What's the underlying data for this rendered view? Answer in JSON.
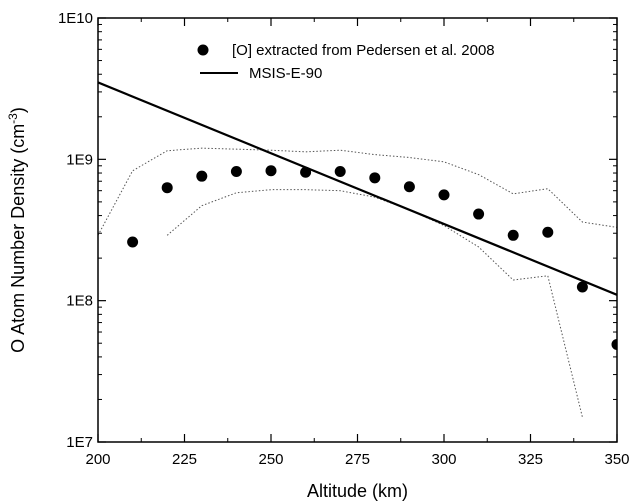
{
  "chart_data": {
    "type": "scatter",
    "title": "",
    "xlabel": "Altitude (km)",
    "ylabel_main": "O Atom Number Density (cm",
    "ylabel_sup": "-3",
    "ylabel_end": ")",
    "xlim": [
      200,
      350
    ],
    "ylim": [
      10000000,
      10000000000
    ],
    "yscale": "log",
    "grid": false,
    "legend_position": "top-right",
    "x_ticks": [
      200,
      225,
      250,
      275,
      300,
      325,
      350
    ],
    "x_tick_labels": [
      "200",
      "225",
      "250",
      "275",
      "300",
      "325",
      "350"
    ],
    "y_ticks": [
      10000000,
      100000000,
      1000000000,
      10000000000
    ],
    "y_tick_labels": [
      "1E7",
      "1E8",
      "1E9",
      "1E10"
    ],
    "series": [
      {
        "name": "[O] extracted from Pedersen et al. 2008",
        "kind": "points",
        "color": "#000000",
        "x": [
          210,
          220,
          230,
          240,
          250,
          260,
          270,
          280,
          290,
          300,
          310,
          320,
          330,
          340,
          350
        ],
        "y": [
          260000000,
          630000000,
          760000000,
          820000000,
          830000000,
          810000000,
          820000000,
          740000000,
          640000000,
          560000000,
          410000000,
          290000000,
          305000000,
          125000000,
          49000000
        ]
      },
      {
        "name": "MSIS-E-90",
        "kind": "line",
        "color": "#000000",
        "x": [
          200,
          350
        ],
        "y": [
          3500000000,
          110000000
        ]
      },
      {
        "kind": "dotted",
        "color": "#555555",
        "x": [
          200,
          210,
          220,
          230,
          240,
          250,
          260,
          270,
          280,
          290,
          300,
          310,
          320,
          330,
          340,
          350
        ],
        "y": [
          290000000,
          830000000,
          1150000000,
          1200000000,
          1180000000,
          1160000000,
          1130000000,
          1160000000,
          1080000000,
          1030000000,
          960000000,
          780000000,
          570000000,
          620000000,
          360000000,
          330000000
        ]
      },
      {
        "kind": "dotted",
        "color": "#555555",
        "x": [
          220,
          230,
          240,
          250,
          260,
          270,
          280,
          290,
          300,
          310,
          320,
          330,
          340
        ],
        "y": [
          290000000,
          470000000,
          580000000,
          610000000,
          610000000,
          600000000,
          540000000,
          440000000,
          340000000,
          240000000,
          140000000,
          150000000,
          15000000
        ]
      }
    ]
  }
}
